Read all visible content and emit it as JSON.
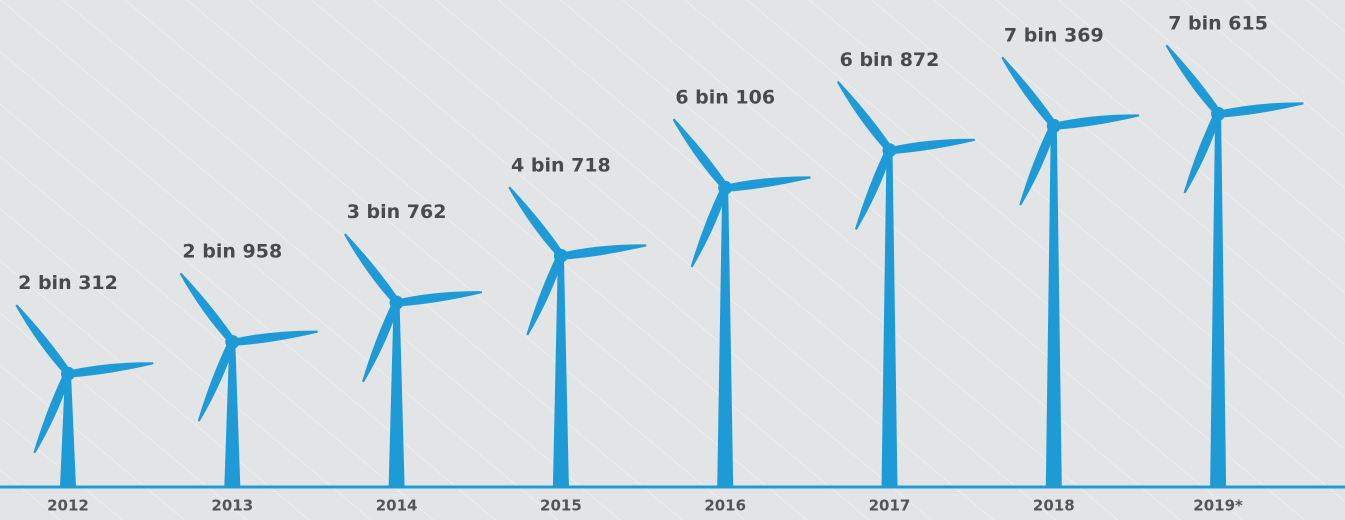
{
  "chart_data": {
    "type": "pictograph",
    "categories": [
      "2012",
      "2013",
      "2014",
      "2015",
      "2016",
      "2017",
      "2018",
      "2019*"
    ],
    "values": [
      2312,
      2958,
      3762,
      4718,
      6106,
      6872,
      7369,
      7615
    ],
    "value_labels": [
      "2 bin 312",
      "2 bin 958",
      "3 bin 762",
      "4 bin 718",
      "6 bin 106",
      "6 bin 872",
      "7 bin 369",
      "7 bin 615"
    ],
    "color": "#1e9bd7"
  }
}
